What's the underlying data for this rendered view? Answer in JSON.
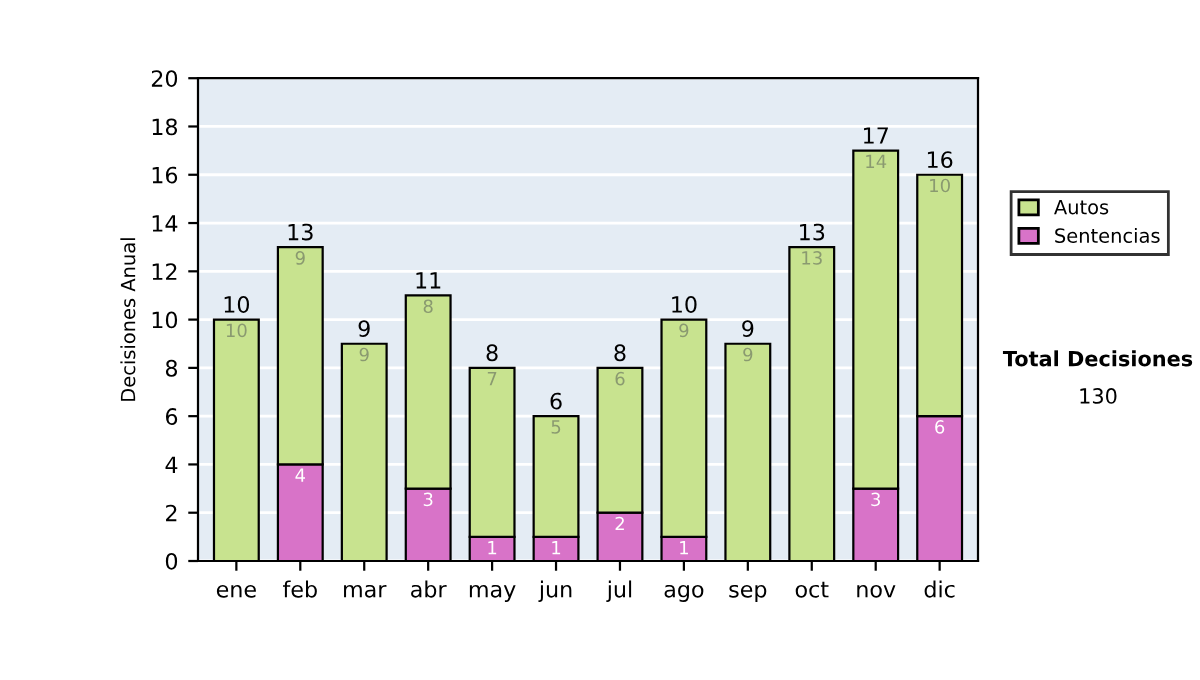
{
  "chart_data": {
    "type": "bar",
    "stacked": true,
    "ylabel": "Decisiones Anual",
    "categories": [
      "ene",
      "feb",
      "mar",
      "abr",
      "may",
      "jun",
      "jul",
      "ago",
      "sep",
      "oct",
      "nov",
      "dic"
    ],
    "series": [
      {
        "name": "Sentencias",
        "color": "#d873c8",
        "values": [
          0,
          4,
          0,
          3,
          1,
          1,
          2,
          1,
          0,
          0,
          3,
          6
        ],
        "value_labels": [
          null,
          "4",
          null,
          "3",
          "1",
          "1",
          "2",
          "1",
          null,
          null,
          "3",
          "6"
        ]
      },
      {
        "name": "Autos",
        "color": "#c8e38f",
        "values": [
          10,
          9,
          9,
          8,
          7,
          5,
          6,
          9,
          9,
          13,
          14,
          10
        ],
        "value_labels": [
          "10",
          "9",
          "9",
          "8",
          "7",
          "5",
          "6",
          "9",
          "9",
          "13",
          "14",
          "10"
        ]
      }
    ],
    "totals": [
      "10",
      "13",
      "9",
      "11",
      "8",
      "6",
      "8",
      "10",
      "9",
      "13",
      "17",
      "16"
    ],
    "ylim": [
      0,
      20
    ],
    "yticks": [
      0,
      2,
      4,
      6,
      8,
      10,
      12,
      14,
      16,
      18,
      20
    ],
    "grid": "y",
    "legend": "right",
    "annotations": [
      "Total Decisiones",
      "130"
    ]
  }
}
